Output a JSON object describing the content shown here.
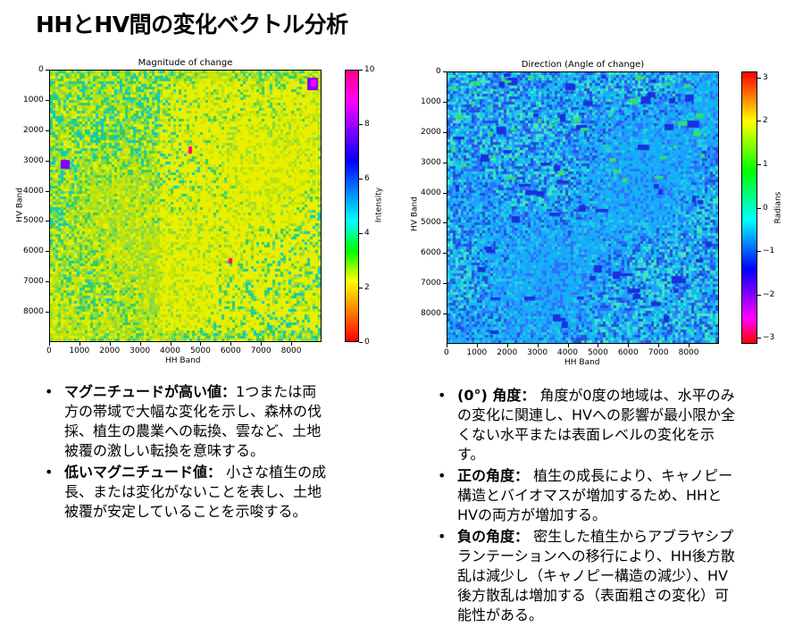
{
  "slide": {
    "title": "HHとHV間の変化ベクトル分析"
  },
  "figures": [
    {
      "title": "Magnitude of change",
      "xlabel": "HH Band",
      "ylabel": "HV Band",
      "x_ticks": [
        "0",
        "1000",
        "2000",
        "3000",
        "4000",
        "5000",
        "6000",
        "7000",
        "8000"
      ],
      "y_ticks": [
        "0",
        "1000",
        "2000",
        "3000",
        "4000",
        "5000",
        "6000",
        "7000",
        "8000"
      ],
      "colorbar": {
        "label": "Intensity",
        "ticks": [
          "0",
          "2",
          "4",
          "6",
          "8",
          "10"
        ],
        "range": [
          0,
          10
        ],
        "colormap": "gist_rainbow_r",
        "colors": [
          "#ff0000",
          "#ff8000",
          "#ffff00",
          "#00ff00",
          "#00ffff",
          "#0080ff",
          "#0000ff",
          "#8000ff",
          "#ff00ff",
          "#ff0080"
        ]
      },
      "image_palette": [
        "#cde600",
        "#a8e020",
        "#e8f000",
        "#7fd94a",
        "#33cc66",
        "#00cccc"
      ]
    },
    {
      "title": "Direction (Angle of change)",
      "xlabel": "HH Band",
      "ylabel": "HV Band",
      "x_ticks": [
        "0",
        "1000",
        "2000",
        "3000",
        "4000",
        "5000",
        "6000",
        "7000",
        "8000"
      ],
      "y_ticks": [
        "0",
        "1000",
        "2000",
        "3000",
        "4000",
        "5000",
        "6000",
        "7000",
        "8000"
      ],
      "colorbar": {
        "label": "Radians",
        "ticks": [
          "3",
          "2",
          "1",
          "0",
          "−1",
          "−2",
          "−3"
        ],
        "range": [
          -3.14,
          3.14
        ],
        "colormap": "hsv",
        "colors": [
          "#ff0000",
          "#ff00ff",
          "#8000ff",
          "#0000ff",
          "#0080ff",
          "#00ffff",
          "#00ff80",
          "#00ff00",
          "#80ff00",
          "#ffff00",
          "#ff8000",
          "#ff0000"
        ]
      },
      "image_palette": [
        "#1ea0ff",
        "#10b8f0",
        "#3070ff",
        "#20d0e0",
        "#2050e0",
        "#40e8c0"
      ]
    }
  ],
  "left_bullets": [
    {
      "label": "マグニチュードが高い値：",
      "text": "1つまたは両方の帯域で大幅な変化を示し、森林の伐採、植生の農業への転換、雲など、土地被覆の激しい転換を意味する。"
    },
    {
      "label": "低いマグニチュード値：",
      "text": " 小さな植生の成長、または変化がないことを表し、土地被覆が安定していることを示唆する。"
    }
  ],
  "right_bullets": [
    {
      "label": "(0°) 角度：",
      "text": " 角度が0度の地域は、水平のみの変化に関連し、HVへの影響が最小限か全くない水平または表面レベルの変化を示す。"
    },
    {
      "label": "正の角度：",
      "text": " 植生の成長により、キャノピー構造とバイオマスが増加するため、HHとHVの両方が増加する。"
    },
    {
      "label": "負の角度：",
      "text": " 密生した植生からアブラヤシプランテーションへの移行により、HH後方散乱は減少し（キャノピー構造の減少）、HV後方散乱は増加する（表面粗さの変化）可能性がある。"
    }
  ],
  "bullet_symbol": "•"
}
